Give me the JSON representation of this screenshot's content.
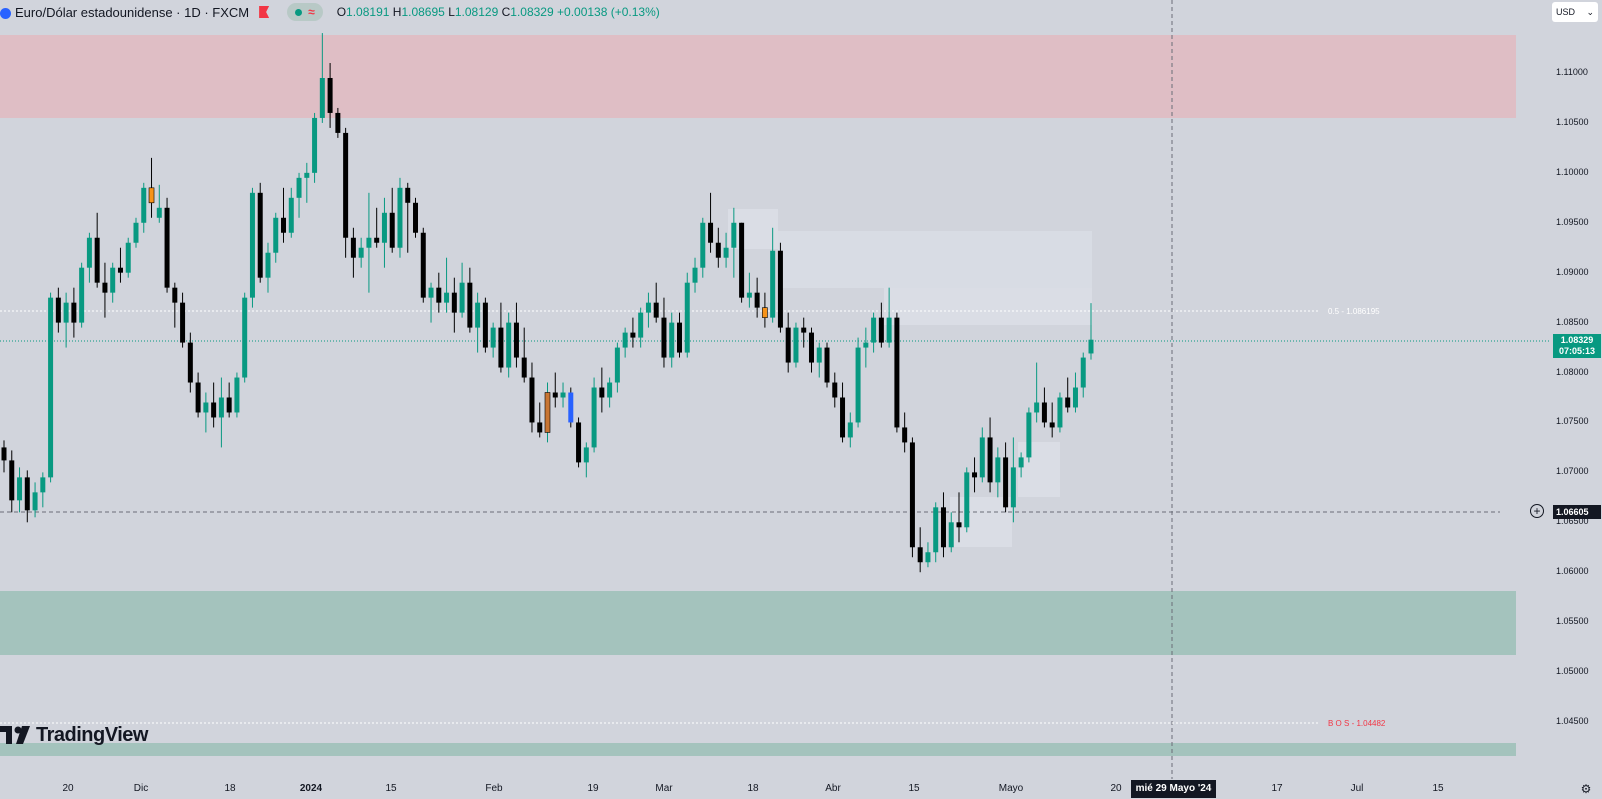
{
  "legend": {
    "symbol": "Euro/Dólar estadounidense · 1D · FXCM",
    "approx_glyph": "≈",
    "open_label": "O",
    "open": "1.08191",
    "high_label": "H",
    "high": "1.08695",
    "low_label": "L",
    "low": "1.08129",
    "close_label": "C",
    "close": "1.08329",
    "change": "+0.00138 (+0.13%)"
  },
  "currency": {
    "label": "USD",
    "chevron": "⌄"
  },
  "price_axis": {
    "ticks": [
      "1.11000",
      "1.10500",
      "1.10000",
      "1.09500",
      "1.09000",
      "1.08500",
      "1.08000",
      "1.07500",
      "1.07000",
      "1.06500",
      "1.06000",
      "1.05500",
      "1.05000",
      "1.04500"
    ],
    "current_price": "1.08329",
    "countdown": "07:05:13",
    "crosshair_price": "1.06605"
  },
  "time_axis": {
    "ticks": [
      "20",
      "Dic",
      "18",
      "2024",
      "15",
      "Feb",
      "19",
      "Mar",
      "18",
      "Abr",
      "15",
      "Mayo",
      "20",
      "17",
      "Jul",
      "15"
    ],
    "crosshair_date": "mié 29 Mayo '24"
  },
  "annotations": {
    "fib_label": "0.5 - 1.086195",
    "bos_label": "B O S - 1.04482"
  },
  "logo": {
    "text": "TradingView"
  },
  "colors": {
    "up": "#089981",
    "down": "#000000",
    "supply_zone": "#f0a3a8",
    "demand_zone": "#80b4a4",
    "bos": "#f23645",
    "highlight_orange": "#f7931a",
    "highlight_blue": "#2962ff"
  },
  "chart_data": {
    "type": "candlestick",
    "symbol": "EURUSD",
    "timeframe": "1D",
    "ylim": [
      1.0425,
      1.114
    ],
    "zones": [
      {
        "kind": "supply",
        "from": 1.1056,
        "to": 1.1138
      },
      {
        "kind": "demand",
        "from": 1.0517,
        "to": 1.0582
      }
    ],
    "levels": [
      {
        "name": "0.5",
        "value": 1.086195
      },
      {
        "name": "B O S",
        "value": 1.04482
      },
      {
        "name": "crosshair",
        "value": 1.06605
      },
      {
        "name": "last",
        "value": 1.08329
      }
    ],
    "candles": [
      [
        1.0725,
        1.0732,
        1.07,
        1.0712
      ],
      [
        1.0712,
        1.0722,
        1.066,
        1.0672
      ],
      [
        1.0672,
        1.0705,
        1.066,
        1.0695
      ],
      [
        1.0695,
        1.0702,
        1.065,
        1.0662
      ],
      [
        1.0662,
        1.069,
        1.0655,
        1.068
      ],
      [
        1.068,
        1.07,
        1.0665,
        1.0695
      ],
      [
        1.0695,
        1.088,
        1.069,
        1.0875
      ],
      [
        1.0875,
        1.0885,
        1.084,
        1.085
      ],
      [
        1.085,
        1.088,
        1.0825,
        1.087
      ],
      [
        1.087,
        1.0885,
        1.0835,
        1.085
      ],
      [
        1.085,
        1.091,
        1.0845,
        1.0905
      ],
      [
        1.0905,
        1.094,
        1.089,
        1.0935
      ],
      [
        1.0935,
        1.096,
        1.0885,
        1.089
      ],
      [
        1.089,
        1.091,
        1.0855,
        1.088
      ],
      [
        1.088,
        1.091,
        1.087,
        1.0905
      ],
      [
        1.0905,
        1.0925,
        1.089,
        1.09
      ],
      [
        1.09,
        1.0935,
        1.0895,
        1.093
      ],
      [
        1.093,
        1.0955,
        1.0925,
        1.095
      ],
      [
        1.095,
        1.099,
        1.094,
        1.0985
      ],
      [
        1.0985,
        1.1015,
        1.0955,
        1.097
      ],
      [
        1.0955,
        1.0988,
        1.095,
        1.0965
      ],
      [
        1.0965,
        1.0975,
        1.088,
        1.0885
      ],
      [
        1.0885,
        1.089,
        1.0845,
        1.087
      ],
      [
        1.087,
        1.088,
        1.0825,
        1.083
      ],
      [
        1.083,
        1.084,
        1.078,
        1.079
      ],
      [
        1.079,
        1.08,
        1.0755,
        1.076
      ],
      [
        1.076,
        1.078,
        1.074,
        1.077
      ],
      [
        1.077,
        1.079,
        1.0745,
        1.0755
      ],
      [
        1.0755,
        1.0795,
        1.0725,
        1.0775
      ],
      [
        1.0775,
        1.079,
        1.0755,
        1.076
      ],
      [
        1.076,
        1.08,
        1.0755,
        1.0795
      ],
      [
        1.0795,
        1.088,
        1.079,
        1.0875
      ],
      [
        1.0875,
        1.0985,
        1.0865,
        1.098
      ],
      [
        1.098,
        1.099,
        1.089,
        1.0895
      ],
      [
        1.0895,
        1.093,
        1.088,
        1.092
      ],
      [
        1.092,
        1.096,
        1.091,
        1.0955
      ],
      [
        1.0955,
        1.0985,
        1.093,
        1.094
      ],
      [
        1.094,
        1.0985,
        1.0935,
        1.0975
      ],
      [
        1.0975,
        1.1,
        1.0955,
        1.0995
      ],
      [
        1.0995,
        1.101,
        1.097,
        1.1
      ],
      [
        1.1,
        1.106,
        1.099,
        1.1055
      ],
      [
        1.1055,
        1.114,
        1.105,
        1.1095
      ],
      [
        1.1095,
        1.111,
        1.1045,
        1.106
      ],
      [
        1.106,
        1.1065,
        1.1035,
        1.104
      ],
      [
        1.104,
        1.1045,
        1.0915,
        1.0935
      ],
      [
        1.0935,
        1.0945,
        1.0895,
        1.0915
      ],
      [
        1.0915,
        1.0935,
        1.0905,
        1.0925
      ],
      [
        1.0925,
        1.098,
        1.088,
        1.0935
      ],
      [
        1.0935,
        1.0965,
        1.0925,
        1.093
      ],
      [
        1.093,
        1.0975,
        1.0905,
        1.096
      ],
      [
        1.096,
        1.0985,
        1.092,
        1.0925
      ],
      [
        1.0925,
        1.0995,
        1.0915,
        1.0985
      ],
      [
        1.0985,
        1.099,
        1.092,
        1.097
      ],
      [
        1.097,
        1.0975,
        1.0935,
        1.094
      ],
      [
        1.094,
        1.0945,
        1.087,
        1.0875
      ],
      [
        1.0875,
        1.089,
        1.085,
        1.0885
      ],
      [
        1.0885,
        1.09,
        1.086,
        1.087
      ],
      [
        1.087,
        1.0915,
        1.086,
        1.088
      ],
      [
        1.088,
        1.0895,
        1.084,
        1.086
      ],
      [
        1.086,
        1.091,
        1.0855,
        1.089
      ],
      [
        1.089,
        1.0905,
        1.084,
        1.0845
      ],
      [
        1.0845,
        1.088,
        1.082,
        1.087
      ],
      [
        1.087,
        1.0875,
        1.082,
        1.0825
      ],
      [
        1.0825,
        1.085,
        1.0815,
        1.0845
      ],
      [
        1.0845,
        1.087,
        1.08,
        1.0805
      ],
      [
        1.0805,
        1.086,
        1.0795,
        1.085
      ],
      [
        1.085,
        1.087,
        1.0805,
        1.0815
      ],
      [
        1.0815,
        1.0845,
        1.079,
        1.0795
      ],
      [
        1.0795,
        1.081,
        1.074,
        1.075
      ],
      [
        1.075,
        1.077,
        1.0735,
        1.074
      ],
      [
        1.074,
        1.079,
        1.073,
        1.078
      ],
      [
        1.078,
        1.08,
        1.0765,
        1.0775
      ],
      [
        1.0775,
        1.079,
        1.0765,
        1.078
      ],
      [
        1.078,
        1.0785,
        1.0745,
        1.075
      ],
      [
        1.075,
        1.0755,
        1.0705,
        1.071
      ],
      [
        1.071,
        1.073,
        1.0695,
        1.0725
      ],
      [
        1.0725,
        1.0795,
        1.072,
        1.0785
      ],
      [
        1.0785,
        1.0805,
        1.076,
        1.0775
      ],
      [
        1.0775,
        1.0795,
        1.0765,
        1.079
      ],
      [
        1.079,
        1.083,
        1.078,
        1.0825
      ],
      [
        1.0825,
        1.0845,
        1.0815,
        1.084
      ],
      [
        1.084,
        1.0855,
        1.0825,
        1.0835
      ],
      [
        1.0835,
        1.0865,
        1.0825,
        1.086
      ],
      [
        1.086,
        1.088,
        1.0845,
        1.087
      ],
      [
        1.087,
        1.089,
        1.085,
        1.0855
      ],
      [
        1.0855,
        1.0875,
        1.0805,
        1.0815
      ],
      [
        1.0815,
        1.086,
        1.0805,
        1.085
      ],
      [
        1.085,
        1.086,
        1.0815,
        1.082
      ],
      [
        1.082,
        1.09,
        1.0815,
        1.089
      ],
      [
        1.089,
        1.0915,
        1.088,
        1.0905
      ],
      [
        1.0905,
        1.0955,
        1.0895,
        1.095
      ],
      [
        1.095,
        1.098,
        1.092,
        1.093
      ],
      [
        1.093,
        1.0945,
        1.0905,
        1.0915
      ],
      [
        1.0915,
        1.094,
        1.0905,
        1.0925
      ],
      [
        1.0925,
        1.0965,
        1.0895,
        1.095
      ],
      [
        1.095,
        1.095,
        1.087,
        1.0875
      ],
      [
        1.0875,
        1.09,
        1.0865,
        1.088
      ],
      [
        1.088,
        1.0895,
        1.0855,
        1.0865
      ],
      [
        1.0865,
        1.088,
        1.0845,
        1.0855
      ],
      [
        1.0855,
        1.0945,
        1.085,
        1.0922
      ],
      [
        1.0922,
        1.093,
        1.084,
        1.0845
      ],
      [
        1.0845,
        1.086,
        1.08,
        1.081
      ],
      [
        1.081,
        1.085,
        1.0805,
        1.0845
      ],
      [
        1.0845,
        1.0855,
        1.0825,
        1.084
      ],
      [
        1.084,
        1.0845,
        1.08,
        1.081
      ],
      [
        1.081,
        1.083,
        1.0795,
        1.0825
      ],
      [
        1.0825,
        1.083,
        1.0785,
        1.079
      ],
      [
        1.079,
        1.08,
        1.0765,
        1.0775
      ],
      [
        1.0775,
        1.079,
        1.073,
        1.0735
      ],
      [
        1.0735,
        1.076,
        1.0725,
        1.075
      ],
      [
        1.075,
        1.0835,
        1.0745,
        1.0825
      ],
      [
        1.0825,
        1.0845,
        1.0805,
        1.083
      ],
      [
        1.083,
        1.086,
        1.082,
        1.0855
      ],
      [
        1.0855,
        1.087,
        1.0825,
        1.083
      ],
      [
        1.083,
        1.0885,
        1.0825,
        1.0855
      ],
      [
        1.0855,
        1.086,
        1.074,
        1.0745
      ],
      [
        1.0745,
        1.076,
        1.072,
        1.073
      ],
      [
        1.073,
        1.0735,
        1.0615,
        1.0625
      ],
      [
        1.0625,
        1.0645,
        1.06,
        1.061
      ],
      [
        1.061,
        1.063,
        1.0605,
        1.062
      ],
      [
        1.062,
        1.067,
        1.061,
        1.0665
      ],
      [
        1.0665,
        1.068,
        1.0615,
        1.0625
      ],
      [
        1.0625,
        1.066,
        1.062,
        1.065
      ],
      [
        1.065,
        1.068,
        1.063,
        1.0645
      ],
      [
        1.0645,
        1.0705,
        1.064,
        1.07
      ],
      [
        1.07,
        1.0715,
        1.068,
        1.0695
      ],
      [
        1.0695,
        1.0745,
        1.069,
        1.0735
      ],
      [
        1.0735,
        1.0755,
        1.068,
        1.069
      ],
      [
        1.069,
        1.0725,
        1.0675,
        1.0715
      ],
      [
        1.0715,
        1.073,
        1.066,
        1.0665
      ],
      [
        1.0665,
        1.0735,
        1.065,
        1.0705
      ],
      [
        1.0705,
        1.072,
        1.0695,
        1.0715
      ],
      [
        1.0715,
        1.0765,
        1.071,
        1.076
      ],
      [
        1.076,
        1.081,
        1.075,
        1.077
      ],
      [
        1.077,
        1.0785,
        1.0745,
        1.075
      ],
      [
        1.075,
        1.077,
        1.0735,
        1.0745
      ],
      [
        1.0745,
        1.078,
        1.074,
        1.0775
      ],
      [
        1.0775,
        1.0795,
        1.076,
        1.0765
      ],
      [
        1.0765,
        1.08,
        1.076,
        1.0785
      ],
      [
        1.0785,
        1.082,
        1.0775,
        1.0815
      ],
      [
        1.08191,
        1.08695,
        1.08129,
        1.08329
      ]
    ]
  }
}
